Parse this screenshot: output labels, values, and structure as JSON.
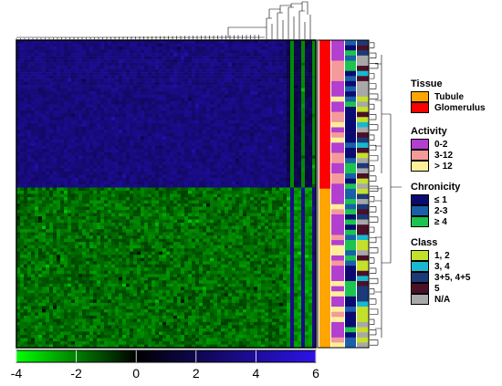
{
  "chart_data": {
    "type": "heatmap",
    "colorbar": {
      "range": [
        -4,
        6
      ],
      "ticks": [
        "-4",
        "-2",
        "0",
        "2",
        "4",
        "6"
      ],
      "tick_values": [
        -4,
        -2,
        0,
        2,
        4,
        6
      ],
      "colors": {
        "low": "#00ff00",
        "mid": "#000000",
        "high": "#2c13e8"
      }
    },
    "row_groups": [
      {
        "tissue": "Glomerulus",
        "fraction": 0.48
      },
      {
        "tissue": "Tubule",
        "fraction": 0.52
      }
    ],
    "annotation_tracks": [
      "Tissue",
      "Activity",
      "Chronicity",
      "Class"
    ]
  },
  "legends": [
    {
      "title": "Tissue",
      "items": [
        {
          "label": "Tubule",
          "color": "#ffa500"
        },
        {
          "label": "Glomerulus",
          "color": "#ff0000"
        }
      ]
    },
    {
      "title": "Activity",
      "items": [
        {
          "label": "0-2",
          "color": "#b23fd0"
        },
        {
          "label": "3-12",
          "color": "#f49a9a"
        },
        {
          "label": "> 12",
          "color": "#ffef99"
        }
      ]
    },
    {
      "title": "Chronicity",
      "items": [
        {
          "label": "≤ 1",
          "color": "#0a0a70"
        },
        {
          "label": "2-3",
          "color": "#1a5fa8"
        },
        {
          "label": "≥ 4",
          "color": "#1bc44e"
        }
      ]
    },
    {
      "title": "Class",
      "items": [
        {
          "label": "1, 2",
          "color": "#c5e02a"
        },
        {
          "label": "3, 4",
          "color": "#1ab8d0"
        },
        {
          "label": "3+5, 4+5",
          "color": "#1c3a78"
        },
        {
          "label": "5",
          "color": "#4a1028"
        },
        {
          "label": "N/A",
          "color": "#a8a8a8"
        }
      ]
    }
  ]
}
